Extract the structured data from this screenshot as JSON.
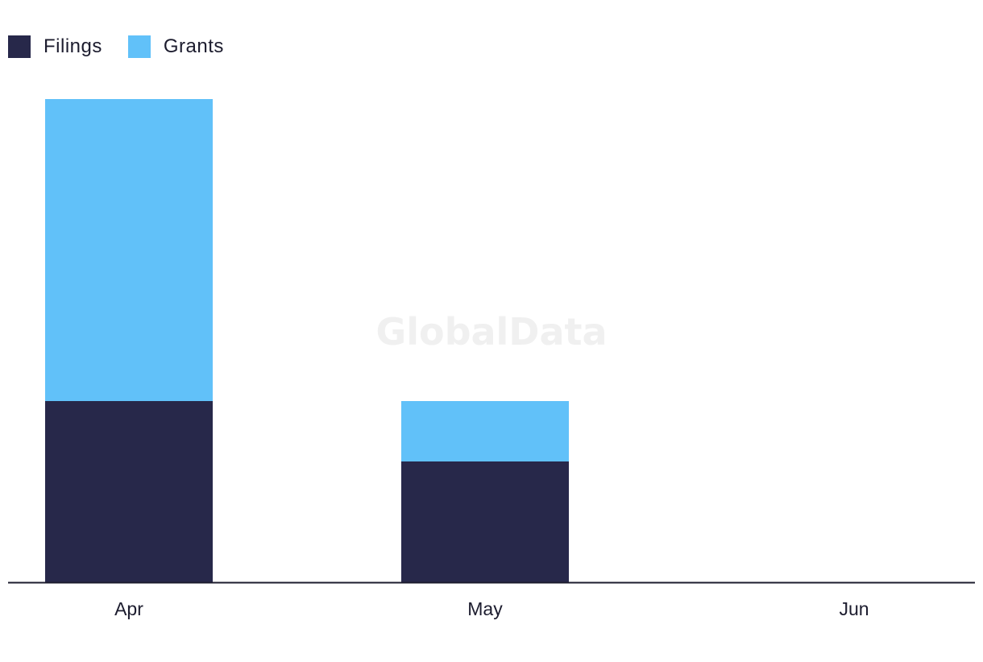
{
  "chart_data": {
    "type": "bar",
    "stacked": true,
    "categories": [
      "Apr",
      "May",
      "Jun"
    ],
    "series": [
      {
        "name": "Filings",
        "values": [
          3,
          2,
          0
        ],
        "color": "#27284a"
      },
      {
        "name": "Grants",
        "values": [
          5,
          1,
          0
        ],
        "color": "#61c1f9"
      }
    ],
    "ylim": [
      0,
      8
    ],
    "grid": false,
    "legend_position": "top-left",
    "watermark": "GlobalData"
  }
}
